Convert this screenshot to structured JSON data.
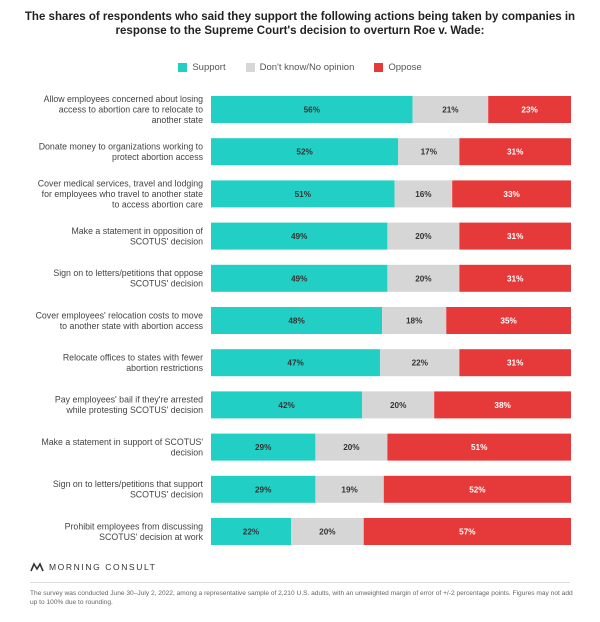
{
  "title": "The shares of respondents who said they support the following actions being taken by companies in response to the Supreme Court's decision to overturn Roe v. Wade:",
  "legend": {
    "support": "Support",
    "dont_know": "Don't know/No opinion",
    "oppose": "Oppose"
  },
  "colors": {
    "support": "#22cfc4",
    "dont_know": "#d6d6d6",
    "oppose": "#e63a3a"
  },
  "chart_data": {
    "type": "bar",
    "orientation": "horizontal",
    "stacked": true,
    "percent_suffix": "%",
    "categories": [
      [
        "Allow employees concerned about losing",
        "access to abortion care to relocate to",
        "another state"
      ],
      [
        "Donate money to organizations working to",
        "protect abortion access"
      ],
      [
        "Cover medical services, travel and lodging",
        "for employees who travel to another state",
        "to access abortion care"
      ],
      [
        "Make a statement in opposition of",
        "SCOTUS' decision"
      ],
      [
        "Sign on to letters/petitions that oppose",
        "SCOTUS' decision"
      ],
      [
        "Cover employees' relocation costs to move",
        "to another state with abortion access"
      ],
      [
        "Relocate offices to states with fewer",
        "abortion restrictions"
      ],
      [
        "Pay employees' bail if they're arrested",
        "while protesting SCOTUS' decision"
      ],
      [
        "Make a statement in support of SCOTUS'",
        "decision"
      ],
      [
        "Sign on to letters/petitions that support",
        "SCOTUS' decision"
      ],
      [
        "Prohibit employees from discussing",
        "SCOTUS' decision at work"
      ]
    ],
    "series": [
      {
        "name": "Support",
        "values": [
          56,
          52,
          51,
          49,
          49,
          48,
          47,
          42,
          29,
          29,
          22
        ]
      },
      {
        "name": "Don't know/No opinion",
        "values": [
          21,
          17,
          16,
          20,
          20,
          18,
          22,
          20,
          20,
          19,
          20
        ]
      },
      {
        "name": "Oppose",
        "values": [
          23,
          31,
          33,
          31,
          31,
          35,
          31,
          38,
          51,
          52,
          57
        ]
      }
    ],
    "xlim": [
      0,
      100
    ]
  },
  "footer": {
    "logo_text": "MORNING CONSULT",
    "note": "The survey was conducted June 30–July 2, 2022, among a representative sample of 2,210 U.S. adults, with an unweighted margin of error of +/-2 percentage points. Figures may not add up to 100% due to rounding."
  }
}
